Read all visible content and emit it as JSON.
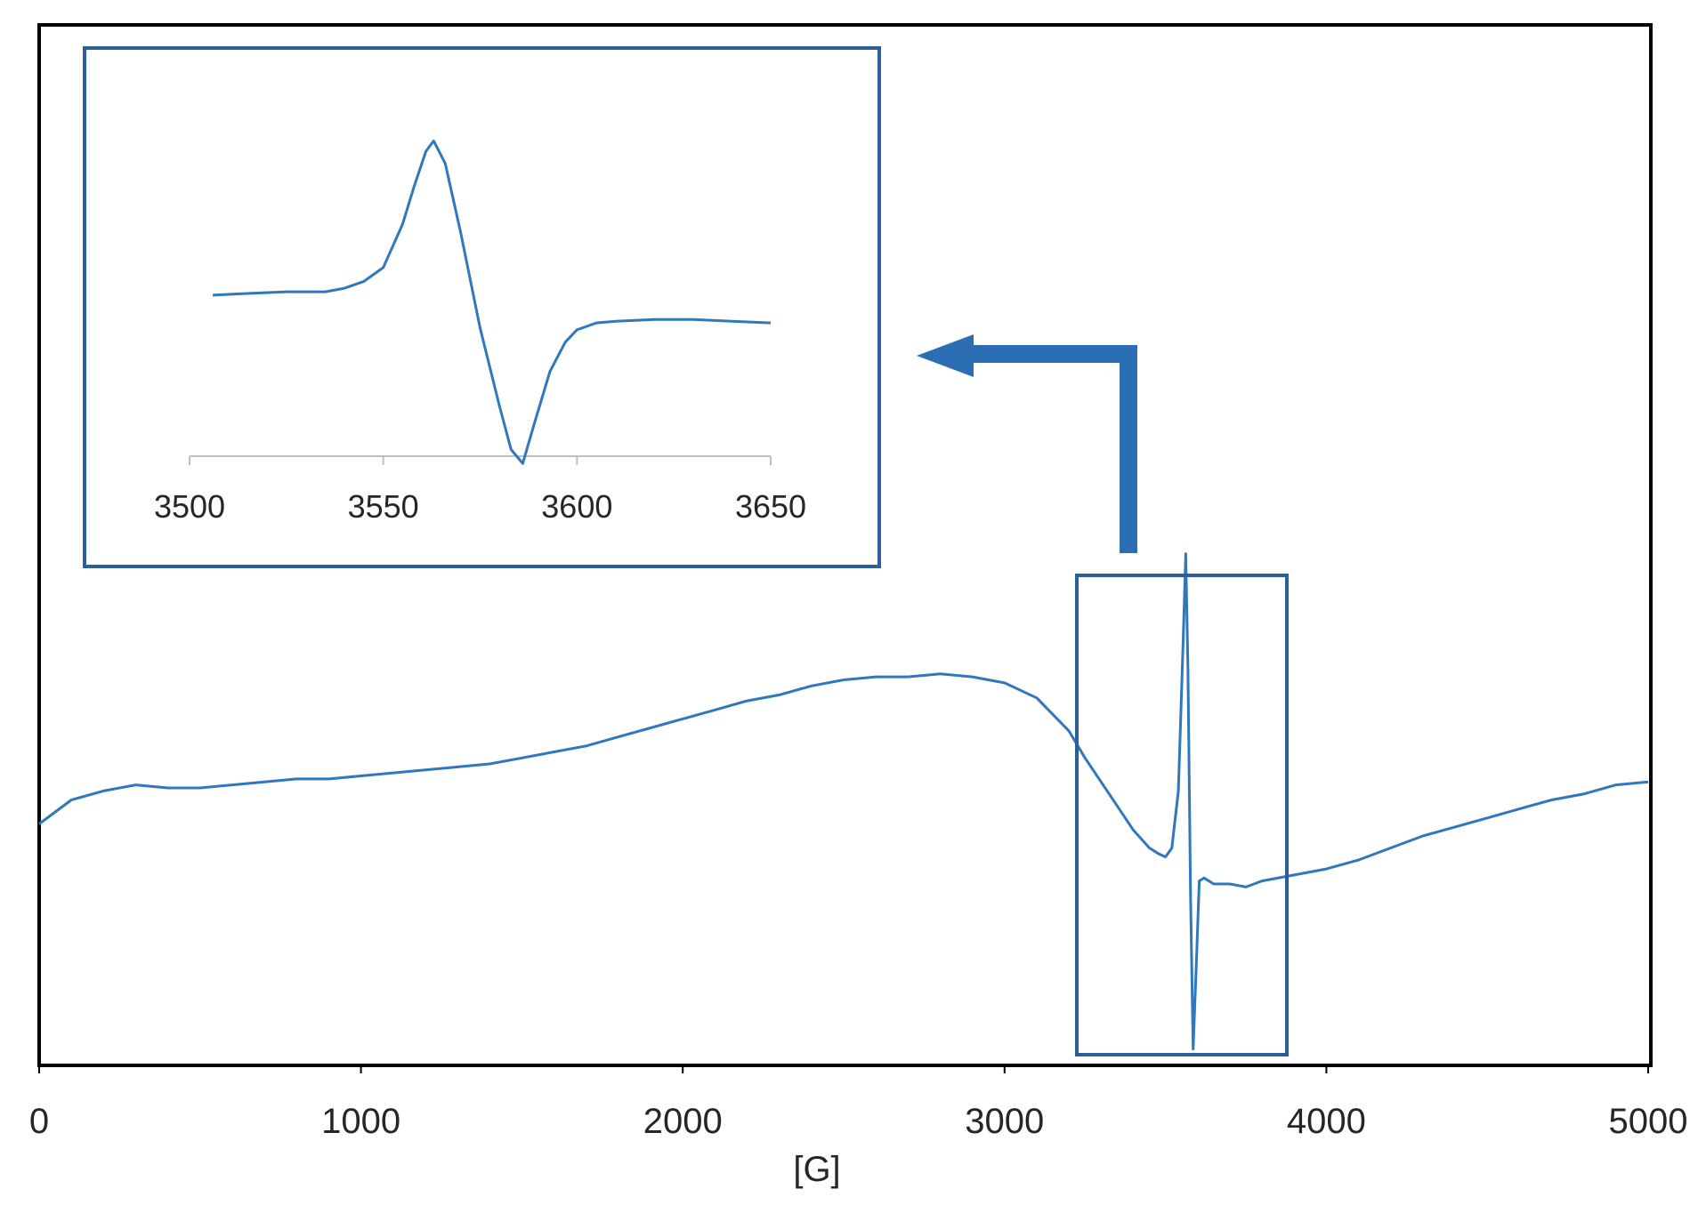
{
  "colors": {
    "line": "#2f78be",
    "frame": "#000000",
    "inset_box": "#2c5f99",
    "arrow": "#2c6eb4",
    "text": "#262626"
  },
  "chart_data": [
    {
      "type": "line",
      "title": "",
      "xlabel": "[G]",
      "ylabel": "",
      "xlim": [
        0,
        5000
      ],
      "ylim": [
        -1,
        1
      ],
      "xticks": [
        "0",
        "1000",
        "2000",
        "3000",
        "4000",
        "5000"
      ],
      "grid": false,
      "legend": "none",
      "series": [
        {
          "x": [
            0,
            100,
            200,
            300,
            400,
            500,
            600,
            700,
            800,
            900,
            1000,
            1100,
            1200,
            1300,
            1400,
            1500,
            1600,
            1700,
            1800,
            1900,
            2000,
            2100,
            2200,
            2300,
            2400,
            2500,
            2600,
            2700,
            2800,
            2900,
            3000,
            3100,
            3200,
            3250,
            3300,
            3350,
            3400,
            3450,
            3480,
            3500,
            3520,
            3540,
            3555,
            3563,
            3570,
            3578,
            3586,
            3595,
            3605,
            3620,
            3650,
            3700,
            3750,
            3800,
            3900,
            4000,
            4100,
            4200,
            4300,
            4400,
            4500,
            4600,
            4700,
            4800,
            4900,
            5000
          ],
          "y": [
            -0.16,
            -0.08,
            -0.05,
            -0.03,
            -0.04,
            -0.04,
            -0.03,
            -0.02,
            -0.01,
            -0.01,
            0.0,
            0.01,
            0.02,
            0.03,
            0.04,
            0.06,
            0.08,
            0.1,
            0.13,
            0.16,
            0.19,
            0.22,
            0.25,
            0.27,
            0.3,
            0.32,
            0.33,
            0.33,
            0.34,
            0.33,
            0.31,
            0.26,
            0.15,
            0.06,
            -0.02,
            -0.1,
            -0.18,
            -0.24,
            -0.26,
            -0.27,
            -0.24,
            -0.05,
            0.45,
            0.74,
            0.35,
            -0.4,
            -0.91,
            -0.65,
            -0.35,
            -0.34,
            -0.36,
            -0.36,
            -0.37,
            -0.35,
            -0.33,
            -0.31,
            -0.28,
            -0.24,
            -0.2,
            -0.17,
            -0.14,
            -0.11,
            -0.08,
            -0.06,
            -0.03,
            -0.02
          ]
        }
      ]
    },
    {
      "type": "line",
      "title": "",
      "xlabel": "",
      "ylabel": "",
      "xlim": [
        3500,
        3650
      ],
      "ylim": [
        -1,
        1
      ],
      "xticks": [
        "3500",
        "3550",
        "3600",
        "3650"
      ],
      "grid": false,
      "legend": "none",
      "series": [
        {
          "x": [
            3506,
            3515,
            3525,
            3535,
            3540,
            3545,
            3550,
            3555,
            3558,
            3561,
            3563,
            3566,
            3570,
            3575,
            3580,
            3583,
            3586,
            3589,
            3593,
            3597,
            3600,
            3605,
            3610,
            3620,
            3630,
            3640,
            3650
          ],
          "y": [
            -0.01,
            0.0,
            0.01,
            0.01,
            0.03,
            0.07,
            0.15,
            0.4,
            0.62,
            0.82,
            0.88,
            0.75,
            0.35,
            -0.2,
            -0.65,
            -0.9,
            -0.98,
            -0.75,
            -0.45,
            -0.28,
            -0.21,
            -0.17,
            -0.16,
            -0.15,
            -0.15,
            -0.16,
            -0.17
          ]
        }
      ]
    }
  ]
}
